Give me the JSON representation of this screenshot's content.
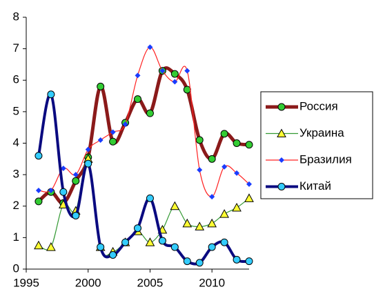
{
  "chart_data": {
    "type": "line",
    "x": [
      1996,
      1997,
      1998,
      1999,
      2000,
      2001,
      2002,
      2003,
      2004,
      2005,
      2006,
      2007,
      2008,
      2009,
      2010,
      2011,
      2012,
      2013
    ],
    "series": [
      {
        "name": "Россия",
        "color": "#8b1a1a",
        "marker": "circle",
        "marker_color": "#33cc33",
        "line_width": 5,
        "values": [
          2.15,
          2.45,
          2.1,
          2.8,
          3.55,
          5.8,
          4.05,
          4.65,
          5.4,
          4.95,
          6.3,
          6.2,
          5.7,
          4.1,
          3.5,
          4.3,
          4.0,
          3.95
        ]
      },
      {
        "name": "Украина",
        "color": "#339933",
        "marker": "triangle",
        "marker_color": "#ffff33",
        "line_width": 1.2,
        "values": [
          0.75,
          0.7,
          2.05,
          1.85,
          3.5,
          0.7,
          0.55,
          0.85,
          1.2,
          0.85,
          1.25,
          2.0,
          1.45,
          1.35,
          1.45,
          1.75,
          1.95,
          2.25
        ]
      },
      {
        "name": "Бразилия",
        "color": "#ff2020",
        "marker": "diamond",
        "marker_color": "#1a3cff",
        "line_width": 1.2,
        "values": [
          2.5,
          2.5,
          3.2,
          3.0,
          3.8,
          4.1,
          4.35,
          4.6,
          6.15,
          7.05,
          6.3,
          5.95,
          6.3,
          3.15,
          2.3,
          3.25,
          3.05,
          2.7
        ]
      },
      {
        "name": "Китай",
        "color": "#0a0a80",
        "marker": "circle",
        "marker_color": "#33ccff",
        "line_width": 4,
        "values": [
          3.6,
          5.55,
          2.45,
          1.7,
          3.35,
          0.7,
          0.45,
          0.85,
          1.3,
          2.25,
          0.9,
          0.7,
          0.25,
          0.2,
          0.7,
          0.85,
          0.3,
          0.25
        ]
      }
    ],
    "xlim": [
      1995,
      2013
    ],
    "xticks": [
      1995,
      2000,
      2005,
      2010
    ],
    "ylim": [
      0,
      8
    ],
    "yticks": [
      0,
      1,
      2,
      3,
      4,
      5,
      6,
      7,
      8
    ],
    "grid": false,
    "legend": "right"
  }
}
